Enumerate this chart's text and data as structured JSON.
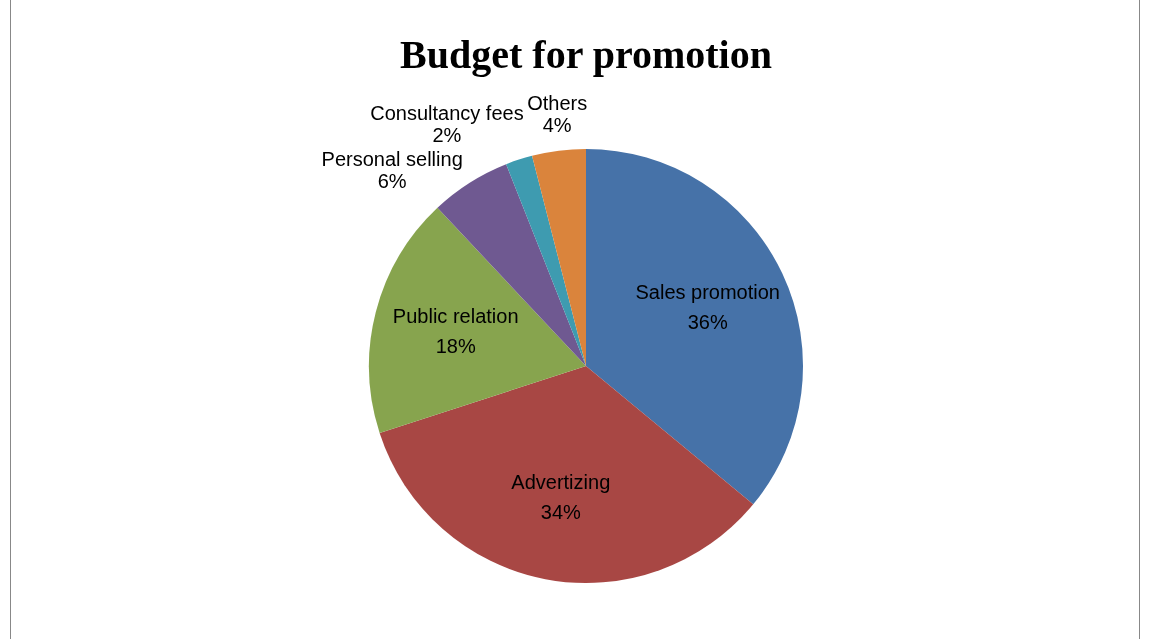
{
  "chart_data": {
    "type": "pie",
    "title": "Budget for promotion",
    "categories": [
      "Sales promotion",
      "Advertizing",
      "Public relation",
      "Personal selling",
      "Consultancy fees",
      "Others"
    ],
    "values": [
      36,
      34,
      18,
      6,
      2,
      4
    ],
    "value_labels": [
      "36%",
      "34%",
      "18%",
      "6%",
      "2%",
      "4%"
    ],
    "colors": [
      "#4672a8",
      "#a84744",
      "#87a44e",
      "#6f5991",
      "#3e9bb0",
      "#da843c"
    ],
    "legend": false
  }
}
